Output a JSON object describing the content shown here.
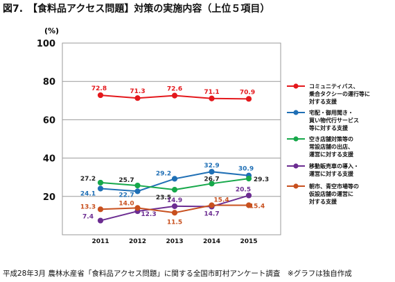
{
  "title": "図7.　【食料品アクセス問題】対策の実施内容（上位５項目）",
  "source": "平成28年3月 農林水産省「食料品アクセス問題」に関する全国市町村アンケート調査　※グラフは独自作成",
  "chart_data": {
    "type": "line",
    "y_unit": "(%)",
    "ylim": [
      0,
      100
    ],
    "yticks": [
      "100",
      "80",
      "60",
      "40",
      "20"
    ],
    "ytick_values": [
      100,
      80,
      60,
      40,
      20
    ],
    "categories": [
      "2011",
      "2012",
      "2013",
      "2014",
      "2015"
    ],
    "grid": true,
    "legend_position": "right",
    "series": [
      {
        "name": "コミュニティバス、乗合タクシーの運行等に対する支援",
        "legend_lines": [
          "コミュニティバス、",
          "乗合タクシーの運行等に",
          "対する支援"
        ],
        "color": "#e4181c",
        "values": [
          72.8,
          71.3,
          72.6,
          71.1,
          70.9
        ],
        "labels": [
          "72.8",
          "71.3",
          "72.6",
          "71.1",
          "70.9"
        ]
      },
      {
        "name": "宅配・御用聞き・買い物代行サービス等に対する支援",
        "legend_lines": [
          "宅配・御用聞き・",
          "買い物代行サービス",
          "等に対する支援"
        ],
        "color": "#1f6fb5",
        "values": [
          24.1,
          22.7,
          29.2,
          32.9,
          30.9
        ],
        "labels": [
          "24.1",
          "22.7",
          "29.2",
          "32.9",
          "30.9"
        ]
      },
      {
        "name": "空き店舗対策等の常設店舗の出店、運営に対する支援",
        "legend_lines": [
          "空き店舗対策等の",
          "常設店舗の出店、",
          "運営に対する支援"
        ],
        "color": "#16a84a",
        "values": [
          27.2,
          25.7,
          23.5,
          26.7,
          29.3
        ],
        "labels": [
          "27.2",
          "25.7",
          "23.5",
          "26.7",
          "29.3"
        ]
      },
      {
        "name": "移動販売車の導入・運営に対する支援",
        "legend_lines": [
          "移動販売車の導入・",
          "運営に対する支援"
        ],
        "color": "#6b2c91",
        "values": [
          7.4,
          12.3,
          14.9,
          14.7,
          20.5
        ],
        "labels": [
          "7.4",
          "12.3",
          "14.9",
          "14.7",
          "20.5"
        ]
      },
      {
        "name": "朝市、青空市場等の仮設店舗の運営に対する支援",
        "legend_lines": [
          "朝市、青空市場等の",
          "仮設店舗の運営に",
          "対する支援"
        ],
        "color": "#c8501e",
        "values": [
          13.3,
          14.0,
          11.5,
          15.4,
          15.4
        ],
        "labels": [
          "13.3",
          "14.0",
          "11.5",
          "15.4",
          "15.4"
        ]
      }
    ]
  }
}
